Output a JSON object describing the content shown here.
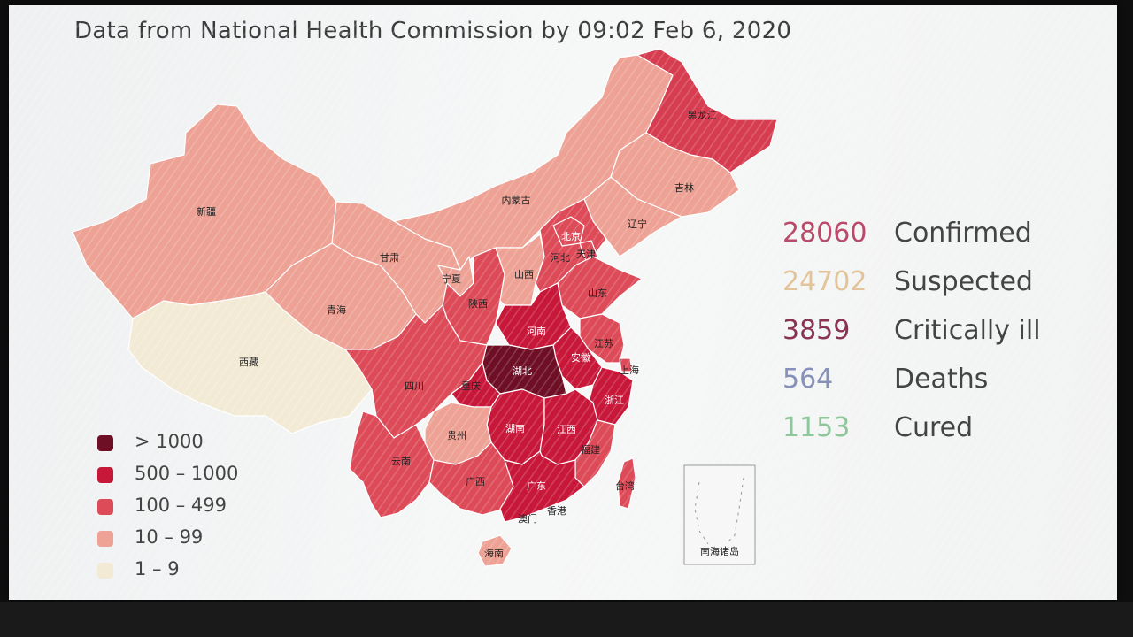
{
  "title": "Data from National Health Commission by 09:02 Feb 6, 2020",
  "legend": [
    {
      "label": "> 1000",
      "color": "#6e0f26"
    },
    {
      "label": "500 – 1000",
      "color": "#c8183a"
    },
    {
      "label": "100 – 499",
      "color": "#dd4a58"
    },
    {
      "label": "10 – 99",
      "color": "#eda295"
    },
    {
      "label": "1 – 9",
      "color": "#f3ead6"
    }
  ],
  "stats": [
    {
      "value": "28060",
      "label": "Confirmed",
      "color": "#b94a6a"
    },
    {
      "value": "24702",
      "label": "Suspected",
      "color": "#e3c49a"
    },
    {
      "value": "3859",
      "label": "Critically ill",
      "color": "#8a3354"
    },
    {
      "value": "564",
      "label": "Deaths",
      "color": "#8790b8"
    },
    {
      "value": "1153",
      "label": "Cured",
      "color": "#8dc79a"
    }
  ],
  "provinces": {
    "heilongjiang": "黑龙江",
    "jilin": "吉林",
    "liaoning": "辽宁",
    "neimenggu": "内蒙古",
    "xinjiang": "新疆",
    "xizang": "西藏",
    "qinghai": "青海",
    "gansu": "甘肃",
    "ningxia": "宁夏",
    "shaanxi": "陕西",
    "shanxi": "山西",
    "beijing": "北京",
    "tianjin": "天津",
    "hebei": "河北",
    "shandong": "山东",
    "henan": "河南",
    "jiangsu": "江苏",
    "anhui": "安徽",
    "shanghai": "上海",
    "hubei": "湖北",
    "sichuan": "四川",
    "chongqing": "重庆",
    "zhejiang": "浙江",
    "hunan": "湖南",
    "jiangxi": "江西",
    "guizhou": "贵州",
    "yunnan": "云南",
    "fujian": "福建",
    "guangxi": "广西",
    "guangdong": "广东",
    "taiwan": "台湾",
    "aomen": "澳门",
    "xianggang": "香港",
    "hainan": "海南",
    "nanhai": "南海诸岛"
  }
}
